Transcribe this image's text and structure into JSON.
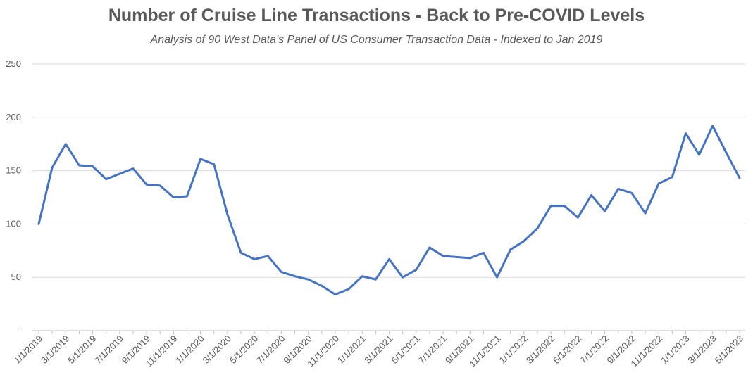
{
  "chart_data": {
    "type": "line",
    "title": "Number of Cruise Line Transactions - Back to Pre-COVID Levels",
    "subtitle": "Analysis of 90 West Data's Panel of US Consumer Transaction Data - Indexed to Jan 2019",
    "xlabel": "",
    "ylabel": "",
    "ylim": [
      0,
      250
    ],
    "yticks": [
      {
        "value": 0,
        "label": "-"
      },
      {
        "value": 50,
        "label": "50"
      },
      {
        "value": 100,
        "label": "100"
      },
      {
        "value": 150,
        "label": "150"
      },
      {
        "value": 200,
        "label": "200"
      },
      {
        "value": 250,
        "label": "250"
      }
    ],
    "grid": true,
    "line_color": "#4472C4",
    "x": [
      "1/1/2019",
      "2/1/2019",
      "3/1/2019",
      "4/1/2019",
      "5/1/2019",
      "6/1/2019",
      "7/1/2019",
      "8/1/2019",
      "9/1/2019",
      "10/1/2019",
      "11/1/2019",
      "12/1/2019",
      "1/1/2020",
      "2/1/2020",
      "3/1/2020",
      "4/1/2020",
      "5/1/2020",
      "6/1/2020",
      "7/1/2020",
      "8/1/2020",
      "9/1/2020",
      "10/1/2020",
      "11/1/2020",
      "12/1/2020",
      "1/1/2021",
      "2/1/2021",
      "3/1/2021",
      "4/1/2021",
      "5/1/2021",
      "6/1/2021",
      "7/1/2021",
      "8/1/2021",
      "9/1/2021",
      "10/1/2021",
      "11/1/2021",
      "12/1/2021",
      "1/1/2022",
      "2/1/2022",
      "3/1/2022",
      "4/1/2022",
      "5/1/2022",
      "6/1/2022",
      "7/1/2022",
      "8/1/2022",
      "9/1/2022",
      "10/1/2022",
      "11/1/2022",
      "12/1/2022",
      "1/1/2023",
      "2/1/2023",
      "3/1/2023",
      "4/1/2023",
      "5/1/2023"
    ],
    "xtick_labels": [
      "1/1/2019",
      "3/1/2019",
      "5/1/2019",
      "7/1/2019",
      "9/1/2019",
      "11/1/2019",
      "1/1/2020",
      "3/1/2020",
      "5/1/2020",
      "7/1/2020",
      "9/1/2020",
      "11/1/2020",
      "1/1/2021",
      "3/1/2021",
      "5/1/2021",
      "7/1/2021",
      "9/1/2021",
      "11/1/2021",
      "1/1/2022",
      "3/1/2022",
      "5/1/2022",
      "7/1/2022",
      "9/1/2022",
      "11/1/2022",
      "1/1/2023",
      "3/1/2023",
      "5/1/2023"
    ],
    "series": [
      {
        "values": [
          100,
          153,
          175,
          155,
          154,
          142,
          147,
          152,
          137,
          136,
          125,
          126,
          161,
          156,
          109,
          73,
          67,
          70,
          55,
          51,
          48,
          42,
          34,
          39,
          51,
          48,
          67,
          50,
          57,
          78,
          70,
          69,
          68,
          73,
          50,
          76,
          84,
          96,
          117,
          117,
          106,
          127,
          112,
          133,
          129,
          110,
          138,
          144,
          185,
          165,
          192,
          167,
          143
        ]
      }
    ]
  }
}
